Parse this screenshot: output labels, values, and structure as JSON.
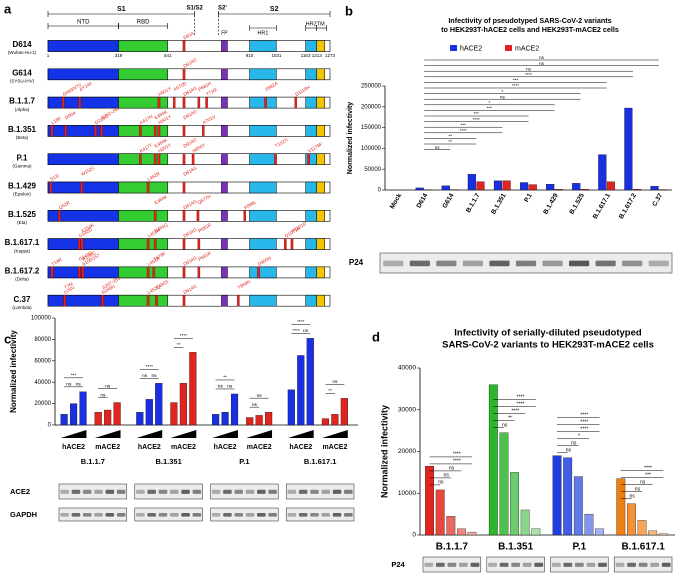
{
  "panel_labels": [
    "a",
    "b",
    "c",
    "d"
  ],
  "spike_diagram": {
    "region_labels": [
      "S1",
      "S1/S2",
      "S2'",
      "S2"
    ],
    "domain_labels": [
      "NTD",
      "RBD",
      "FP",
      "HR1",
      "HR2",
      "TM"
    ],
    "positions": [
      1,
      319,
      541,
      910,
      1031,
      1163,
      1213,
      1273
    ],
    "variants": [
      {
        "name": "D614",
        "lineage": "(Wuhan-Hu-1)",
        "mutations": [
          "D614"
        ]
      },
      {
        "name": "G614",
        "lineage": "(SYSU-IHV)",
        "mutations": [
          "D614G"
        ]
      },
      {
        "name": "B.1.1.7",
        "lineage": "(Alpha)",
        "mutations": [
          "ΔH69/V70",
          "ΔY144",
          "N501Y",
          "A570D",
          "D614G",
          "P681H",
          "T716I",
          "S982A",
          "D1118H"
        ]
      },
      {
        "name": "B.1.351",
        "lineage": "(Beta)",
        "mutations": [
          "L18F",
          "D80A",
          "D215G",
          "Δ242-244",
          "K417N",
          "E484K",
          "N501Y",
          "D614G",
          "A701V"
        ]
      },
      {
        "name": "P.1",
        "lineage": "(Gamma)",
        "mutations": [
          "K417T",
          "E484K",
          "N501Y",
          "D614G",
          "H655Y",
          "T1027I",
          "V1176F"
        ]
      },
      {
        "name": "B.1.429",
        "lineage": "(Epsilon)",
        "mutations": [
          "S13I",
          "W152C",
          "L452R",
          "D614G"
        ]
      },
      {
        "name": "B.1.525",
        "lineage": "(Eta)",
        "mutations": [
          "Q52R",
          "E484K",
          "D614G",
          "Q677H",
          "F888L"
        ]
      },
      {
        "name": "B.1.617.1",
        "lineage": "(Kappa)",
        "mutations": [
          "G142D",
          "E154K",
          "L452R",
          "E484Q",
          "D614G",
          "P681R",
          "Q1071H",
          "H1101D"
        ]
      },
      {
        "name": "B.1.617.2",
        "lineage": "(Delta)",
        "mutations": [
          "T19R",
          "G142D",
          "Δ156/157",
          "R158G",
          "L452R",
          "T478K",
          "D614G",
          "P681R",
          "D950N"
        ]
      },
      {
        "name": "C.37",
        "lineage": "(Lambda)",
        "mutations": [
          "G75V",
          "T76I",
          "R246N",
          "Δ247-253",
          "L452Q",
          "F490S",
          "D614G",
          "T859N"
        ]
      }
    ]
  },
  "chart_data": [
    {
      "type": "bar",
      "title": [
        "Infectivity of pseudotyped SARS-CoV-2 variants",
        "to HEK293T-hACE2 cells and HEK293T-mACE2 cells"
      ],
      "y_label": "Normalized infectivity",
      "categories": [
        "Mock",
        "D614",
        "G614",
        "B.1.1.7",
        "B.1.351",
        "P.1",
        "B.1.429",
        "B.1.525",
        "B.1.617.1",
        "B.1.617.2",
        "C.37"
      ],
      "series": [
        {
          "name": "hACE2",
          "color": "#1a2fe0",
          "values": [
            0,
            5000,
            10000,
            38000,
            22000,
            18000,
            14000,
            16000,
            85000,
            197000,
            9000
          ]
        },
        {
          "name": "mACE2",
          "color": "#e0241f",
          "values": [
            0,
            500,
            500,
            20000,
            22000,
            13000,
            2000,
            2000,
            20000,
            2000,
            1000
          ]
        }
      ],
      "ylim": [
        0,
        250000
      ],
      "yticks": [
        0,
        50000,
        100000,
        150000,
        200000,
        250000
      ],
      "significance": [
        "ns",
        "ns",
        "ns",
        "****",
        "***",
        "****",
        "*",
        "ns",
        "*",
        "***",
        "***",
        "****",
        "***",
        "****",
        "**",
        "**",
        "ns"
      ],
      "blot_label": "P24"
    },
    {
      "type": "grouped-bar",
      "y_label": "Normalized infectivity",
      "categories": [
        "B.1.1.7",
        "B.1.351",
        "P.1",
        "B.1.617.1"
      ],
      "series": [
        {
          "name": "hACE2",
          "color": "#1a2fe0",
          "values": [
            [
              10000,
              20000,
              31000
            ],
            [
              12000,
              24000,
              39000
            ],
            [
              10000,
              12000,
              29000
            ],
            [
              33000,
              65000,
              81000
            ]
          ]
        },
        {
          "name": "mACE2",
          "color": "#e0241f",
          "values": [
            [
              12000,
              14000,
              21000
            ],
            [
              21000,
              39000,
              68000
            ],
            [
              7000,
              9000,
              12000
            ],
            [
              6000,
              10000,
              25000
            ]
          ]
        }
      ],
      "ylim": [
        0,
        100000
      ],
      "yticks": [
        0,
        20000,
        40000,
        60000,
        80000,
        100000
      ],
      "significance": [
        [
          [
            "***",
            "ns",
            "ns"
          ],
          [
            "ns",
            "ns"
          ]
        ],
        [
          [
            "****",
            "ns",
            "ns"
          ],
          [
            "****",
            "**"
          ]
        ],
        [
          [
            "**",
            "ns",
            "ns"
          ],
          [
            "ns",
            "ns"
          ]
        ],
        [
          [
            "****",
            "****",
            "ns"
          ],
          [
            "ns",
            "**"
          ]
        ]
      ],
      "blot_labels": [
        "ACE2",
        "GAPDH"
      ]
    },
    {
      "type": "dilution-bar",
      "title": [
        "Infectivity of serially-diluted pseudotyped",
        "SARS-CoV-2 variants to HEK293T-mACE2 cells"
      ],
      "y_label": "Normalized infectivity",
      "series": [
        {
          "name": "B.1.1.7",
          "color": "#e3261d",
          "values": [
            16500,
            10800,
            4500,
            1500,
            700
          ]
        },
        {
          "name": "B.1.351",
          "color": "#2db52d",
          "values": [
            36000,
            24500,
            15000,
            6000,
            1500
          ]
        },
        {
          "name": "P.1",
          "color": "#1f3fe0",
          "values": [
            19000,
            18500,
            14000,
            5000,
            1500
          ]
        },
        {
          "name": "B.1.617.1",
          "color": "#f07f12",
          "values": [
            13500,
            7500,
            3500,
            1000,
            300
          ]
        }
      ],
      "ylim": [
        0,
        40000
      ],
      "yticks": [
        0,
        10000,
        20000,
        30000,
        40000
      ],
      "significance": [
        [
          "****",
          "****",
          "ns",
          "ns",
          "ns"
        ],
        [
          "****",
          "****",
          "****",
          "**",
          "ns"
        ],
        [
          "****",
          "****",
          "****",
          "*",
          "ns",
          "ns"
        ],
        [
          "****",
          "***",
          "ns",
          "ns",
          "ns"
        ]
      ],
      "blot_label": "P24"
    }
  ]
}
